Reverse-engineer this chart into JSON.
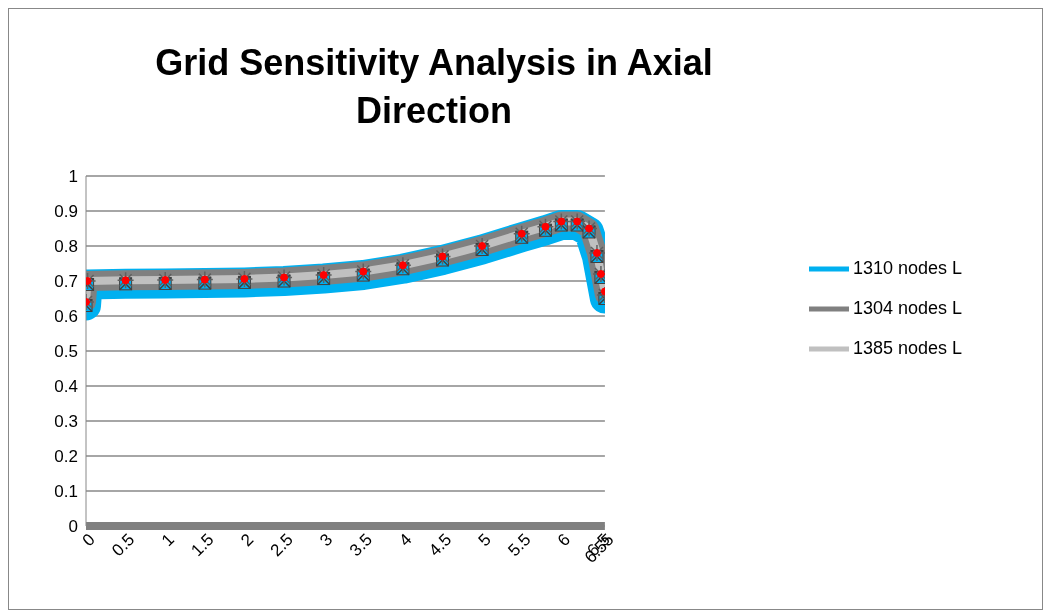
{
  "chart_data": {
    "type": "line",
    "title": "Grid Sensitivity Analysis in Axial Direction",
    "xlim": [
      0,
      6.55
    ],
    "xticks": [
      0,
      0.5,
      1,
      1.5,
      2,
      2.5,
      3,
      3.5,
      4,
      4.5,
      5,
      5.5,
      6,
      6.5,
      6.55
    ],
    "ylim": [
      0,
      1
    ],
    "yticks": [
      0,
      0.1,
      0.2,
      0.3,
      0.4,
      0.5,
      0.6,
      0.7,
      0.8,
      0.9,
      1
    ],
    "grid": "y",
    "legend": "right",
    "series": [
      {
        "name": "1310 nodes L",
        "color": "#00b0f0",
        "marker": "square",
        "x": [
          0,
          0.02,
          0.5,
          1,
          1.5,
          2,
          2.5,
          3,
          3.5,
          4,
          4.5,
          5,
          5.5,
          5.8,
          6,
          6.2,
          6.35,
          6.45,
          6.5,
          6.55
        ],
        "values": [
          0.63,
          0.69,
          0.692,
          0.693,
          0.694,
          0.696,
          0.7,
          0.707,
          0.717,
          0.735,
          0.76,
          0.79,
          0.825,
          0.845,
          0.86,
          0.86,
          0.84,
          0.77,
          0.71,
          0.65
        ]
      },
      {
        "name": "1304 nodes L",
        "color": "#808080",
        "marker": "cross",
        "x": [
          0,
          0.02,
          0.5,
          1,
          1.5,
          2,
          2.5,
          3,
          3.5,
          4,
          4.5,
          5,
          5.5,
          5.8,
          6,
          6.2,
          6.35,
          6.45,
          6.5,
          6.55
        ],
        "values": [
          0.64,
          0.7,
          0.702,
          0.703,
          0.704,
          0.706,
          0.71,
          0.717,
          0.727,
          0.745,
          0.77,
          0.8,
          0.835,
          0.855,
          0.87,
          0.87,
          0.85,
          0.78,
          0.72,
          0.66
        ]
      },
      {
        "name": "1385 nodes L",
        "color": "#c0c0c0",
        "marker": "circle",
        "x": [
          0,
          0.02,
          0.5,
          1,
          1.5,
          2,
          2.5,
          3,
          3.5,
          4,
          4.5,
          5,
          5.5,
          5.8,
          6,
          6.2,
          6.35,
          6.45,
          6.5,
          6.55
        ],
        "values": [
          0.64,
          0.7,
          0.702,
          0.703,
          0.704,
          0.706,
          0.71,
          0.717,
          0.727,
          0.745,
          0.77,
          0.8,
          0.835,
          0.855,
          0.87,
          0.87,
          0.85,
          0.78,
          0.72,
          0.67
        ]
      }
    ]
  }
}
